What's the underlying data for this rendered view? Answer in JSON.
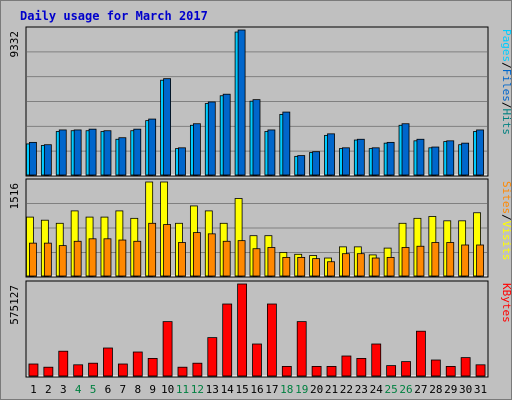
{
  "colors": {
    "frame_bg": "#c0c0c0",
    "hits": "#00ccff",
    "files": "#0066cc",
    "sites": "#ff8800",
    "visits": "#ffff00",
    "kbytes": "#ff0000",
    "weekend_day": "#008040",
    "weekday": "#000000"
  },
  "chart_data": {
    "type": "bar",
    "title": "Daily usage for March 2017",
    "days": [
      "1",
      "2",
      "3",
      "4",
      "5",
      "6",
      "7",
      "8",
      "9",
      "10",
      "11",
      "12",
      "13",
      "14",
      "15",
      "16",
      "17",
      "18",
      "19",
      "20",
      "21",
      "22",
      "23",
      "24",
      "25",
      "26",
      "27",
      "28",
      "29",
      "30",
      "31"
    ],
    "weekend_days": [
      "4",
      "5",
      "11",
      "12",
      "18",
      "19",
      "25",
      "26"
    ],
    "panels": [
      {
        "name": "hits_files",
        "max_label": "9332",
        "ymax": 9332,
        "legend": [
          "Pages",
          "/",
          "Files",
          "/",
          "Hits"
        ],
        "legend_colors": [
          "#00ccff",
          "#000000",
          "#0066cc",
          "#000000",
          "#008080"
        ],
        "series": [
          {
            "name": "Hits",
            "color": "#00ccff",
            "values": [
              2000,
              1900,
              2800,
              2850,
              2850,
              2800,
              2300,
              2850,
              3500,
              6100,
              1700,
              3200,
              4600,
              5100,
              9200,
              4750,
              2800,
              3900,
              1200,
              1450,
              2550,
              1700,
              2250,
              1700,
              2050,
              3200,
              2200,
              1750,
              2150,
              1950,
              2800
            ]
          },
          {
            "name": "Files",
            "color": "#0066cc",
            "values": [
              2100,
              1950,
              2900,
              2900,
              2950,
              2850,
              2400,
              2950,
              3600,
              6200,
              1750,
              3300,
              4700,
              5200,
              9332,
              4850,
              2900,
              4050,
              1250,
              1500,
              2650,
              1750,
              2300,
              1750,
              2100,
              3300,
              2300,
              1800,
              2200,
              2050,
              2900
            ]
          }
        ]
      },
      {
        "name": "visits_sites",
        "max_label": "1516",
        "ymax": 1516,
        "legend": [
          "Sites",
          "/",
          "Visits"
        ],
        "legend_colors": [
          "#ff8800",
          "#000000",
          "#ffff00"
        ],
        "series": [
          {
            "name": "Visits",
            "color": "#ffff00",
            "values": [
              950,
              900,
              850,
              1050,
              950,
              950,
              1050,
              930,
              1516,
              1516,
              850,
              1130,
              1050,
              850,
              1250,
              650,
              650,
              380,
              350,
              330,
              290,
              470,
              470,
              340,
              450,
              850,
              930,
              960,
              890,
              890,
              1020
            ]
          },
          {
            "name": "Sites",
            "color": "#ff8800",
            "values": [
              530,
              530,
              490,
              560,
              600,
              600,
              580,
              560,
              850,
              830,
              540,
              700,
              680,
              560,
              570,
              440,
              460,
              300,
              300,
              280,
              230,
              360,
              360,
              290,
              300,
              460,
              480,
              540,
              540,
              500,
              500
            ]
          }
        ]
      },
      {
        "name": "kbytes",
        "max_label": "575127",
        "ymax": 575127,
        "legend": [
          "KBytes"
        ],
        "legend_colors": [
          "#ff0000"
        ],
        "series": [
          {
            "name": "KBytes",
            "color": "#ff0000",
            "values": [
              75000,
              55000,
              155000,
              70000,
              80000,
              175000,
              75000,
              150000,
              110000,
              340000,
              55000,
              80000,
              240000,
              450000,
              575127,
              200000,
              450000,
              60000,
              340000,
              60000,
              60000,
              125000,
              110000,
              200000,
              65000,
              90000,
              280000,
              100000,
              60000,
              115000,
              70000
            ]
          }
        ]
      }
    ]
  }
}
